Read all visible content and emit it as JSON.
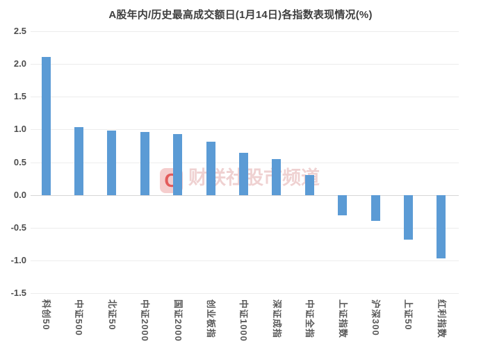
{
  "chart_data": {
    "type": "bar",
    "title": "A股年内/历史最高成交额日(1月14日)各指数表现情况(%)",
    "categories": [
      "科创50",
      "中证500",
      "北证50",
      "中证2000",
      "国证2000",
      "创业板指",
      "中证1000",
      "深证成指",
      "中证全指",
      "上证指数",
      "沪深300",
      "上证50",
      "红利指数"
    ],
    "values": [
      2.11,
      1.04,
      0.98,
      0.96,
      0.93,
      0.81,
      0.64,
      0.55,
      0.3,
      -0.31,
      -0.4,
      -0.68,
      -0.97
    ],
    "xlabel": "",
    "ylabel": "",
    "ylim": [
      -1.5,
      2.5
    ],
    "ytick_labels": [
      "2.5",
      "2.0",
      "1.5",
      "1.0",
      "0.5",
      "0.0",
      "-0.5",
      "-1.0",
      "-1.5"
    ],
    "grid": true,
    "legend": false,
    "bar_color": "#5B9BD5"
  },
  "watermark": {
    "logo_letter": "C",
    "text": "财联社股市频道"
  },
  "colors": {
    "bar": "#5B9BD5",
    "gridline": "#ececec",
    "zero_line": "#d6d6d6",
    "axis_text": "#595959",
    "title_text": "#3f3f3f",
    "watermark_red": "#df4646",
    "watermark_bg": "#f2bcbc",
    "watermark_text": "#e2acac"
  }
}
